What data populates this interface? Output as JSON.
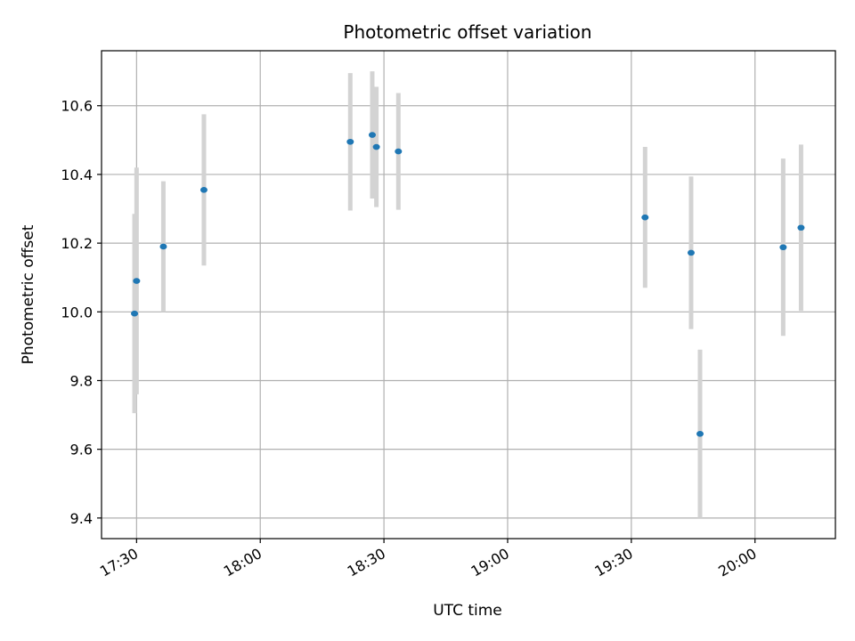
{
  "chart_data": {
    "type": "scatter",
    "title": "Photometric offset variation",
    "xlabel": "UTC time",
    "ylabel": "Photometric offset",
    "x_ticks": [
      "17:30",
      "18:00",
      "18:30",
      "19:00",
      "19:30",
      "20:00"
    ],
    "y_ticks": [
      "9.4",
      "9.6",
      "9.8",
      "10.0",
      "10.2",
      "10.4",
      "10.6"
    ],
    "xlim": [
      "17:21:30",
      "20:19:30"
    ],
    "ylim": [
      9.34,
      10.76
    ],
    "grid": true,
    "marker_color": "#1f77b4",
    "errorbar_color": "#d3d3d3",
    "series": [
      {
        "points": [
          {
            "x": "17:29:30",
            "y": 9.995,
            "err": 0.29
          },
          {
            "x": "17:30:00",
            "y": 10.09,
            "err": 0.33
          },
          {
            "x": "17:36:30",
            "y": 10.19,
            "err": 0.19
          },
          {
            "x": "17:46:20",
            "y": 10.355,
            "err": 0.22
          },
          {
            "x": "18:21:50",
            "y": 10.495,
            "err": 0.2
          },
          {
            "x": "18:27:10",
            "y": 10.515,
            "err": 0.185
          },
          {
            "x": "18:28:10",
            "y": 10.48,
            "err": 0.175
          },
          {
            "x": "18:33:30",
            "y": 10.467,
            "err": 0.17
          },
          {
            "x": "19:33:20",
            "y": 10.275,
            "err": 0.205
          },
          {
            "x": "19:44:30",
            "y": 10.172,
            "err": 0.222
          },
          {
            "x": "19:46:40",
            "y": 9.645,
            "err": 0.245
          },
          {
            "x": "20:06:50",
            "y": 10.188,
            "err": 0.258
          },
          {
            "x": "20:11:10",
            "y": 10.245,
            "err": 0.242
          }
        ]
      }
    ]
  }
}
